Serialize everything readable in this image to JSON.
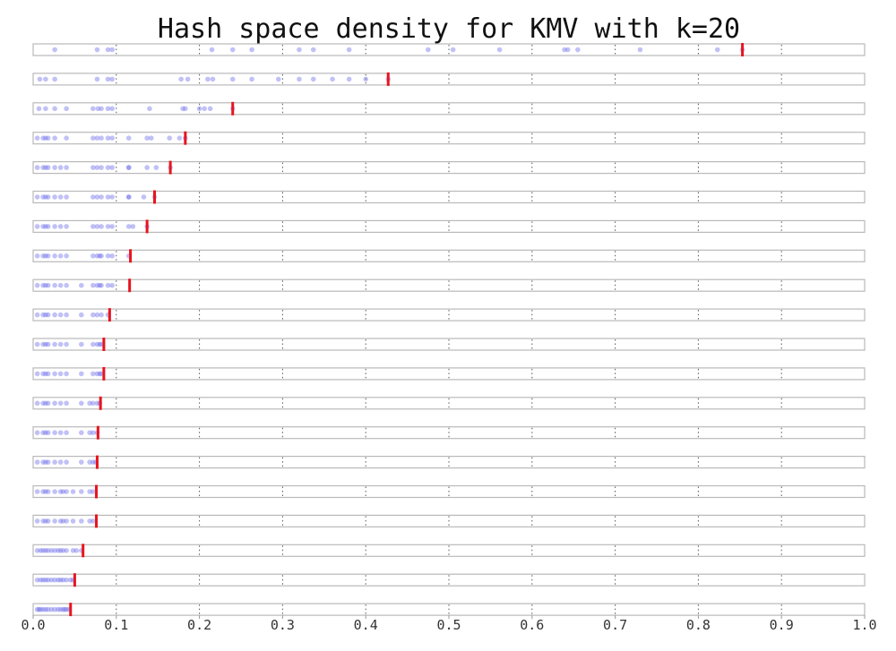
{
  "chart_data": {
    "type": "scatter",
    "title": "Hash space density for KMV with k=20",
    "xlim": [
      0.0,
      1.0
    ],
    "xticks": [
      0.0,
      0.1,
      0.2,
      0.3,
      0.4,
      0.5,
      0.6,
      0.7,
      0.8,
      0.9,
      1.0
    ],
    "xtick_labels": [
      "0.0",
      "0.1",
      "0.2",
      "0.3",
      "0.4",
      "0.5",
      "0.6",
      "0.7",
      "0.8",
      "0.9",
      "1.0"
    ],
    "grid": true,
    "colors": {
      "point": "#6b6bea",
      "marker": "#e8141e",
      "box": "#b9b9b9"
    },
    "rows": [
      {
        "points": [
          0.026,
          0.077,
          0.09,
          0.095,
          0.215,
          0.24,
          0.263,
          0.32,
          0.337,
          0.38,
          0.475,
          0.505,
          0.561,
          0.639,
          0.643,
          0.655,
          0.73,
          0.823,
          0.853
        ],
        "kth": 0.853
      },
      {
        "points": [
          0.008,
          0.015,
          0.026,
          0.077,
          0.09,
          0.095,
          0.178,
          0.186,
          0.21,
          0.216,
          0.24,
          0.263,
          0.295,
          0.32,
          0.337,
          0.36,
          0.38,
          0.4,
          0.427
        ],
        "kth": 0.427
      },
      {
        "points": [
          0.007,
          0.015,
          0.026,
          0.04,
          0.072,
          0.078,
          0.082,
          0.09,
          0.095,
          0.14,
          0.18,
          0.183,
          0.2,
          0.206,
          0.213,
          0.24
        ],
        "kth": 0.24
      },
      {
        "points": [
          0.005,
          0.012,
          0.015,
          0.018,
          0.026,
          0.04,
          0.072,
          0.077,
          0.082,
          0.09,
          0.095,
          0.115,
          0.137,
          0.142,
          0.164,
          0.176,
          0.183
        ],
        "kth": 0.183
      },
      {
        "points": [
          0.005,
          0.012,
          0.015,
          0.018,
          0.026,
          0.033,
          0.04,
          0.072,
          0.077,
          0.082,
          0.09,
          0.095,
          0.115,
          0.115,
          0.137,
          0.148,
          0.165
        ],
        "kth": 0.165
      },
      {
        "points": [
          0.005,
          0.012,
          0.015,
          0.018,
          0.026,
          0.033,
          0.04,
          0.072,
          0.077,
          0.082,
          0.09,
          0.095,
          0.115,
          0.115,
          0.133,
          0.146
        ],
        "kth": 0.146
      },
      {
        "points": [
          0.005,
          0.012,
          0.015,
          0.018,
          0.026,
          0.033,
          0.04,
          0.072,
          0.077,
          0.082,
          0.09,
          0.095,
          0.115,
          0.12,
          0.137
        ],
        "kth": 0.137
      },
      {
        "points": [
          0.005,
          0.012,
          0.015,
          0.018,
          0.026,
          0.033,
          0.04,
          0.072,
          0.077,
          0.08,
          0.082,
          0.09,
          0.095,
          0.115
        ],
        "kth": 0.117
      },
      {
        "points": [
          0.005,
          0.012,
          0.015,
          0.018,
          0.026,
          0.033,
          0.04,
          0.058,
          0.072,
          0.077,
          0.08,
          0.082,
          0.09,
          0.095
        ],
        "kth": 0.116
      },
      {
        "points": [
          0.005,
          0.012,
          0.015,
          0.018,
          0.026,
          0.033,
          0.04,
          0.058,
          0.072,
          0.077,
          0.082,
          0.09
        ],
        "kth": 0.092
      },
      {
        "points": [
          0.005,
          0.012,
          0.015,
          0.018,
          0.026,
          0.033,
          0.04,
          0.058,
          0.072,
          0.077,
          0.08,
          0.082
        ],
        "kth": 0.085
      },
      {
        "points": [
          0.005,
          0.012,
          0.015,
          0.018,
          0.026,
          0.033,
          0.04,
          0.058,
          0.072,
          0.077,
          0.08,
          0.082
        ],
        "kth": 0.085
      },
      {
        "points": [
          0.005,
          0.012,
          0.015,
          0.018,
          0.026,
          0.033,
          0.04,
          0.058,
          0.068,
          0.072,
          0.077,
          0.08
        ],
        "kth": 0.081
      },
      {
        "points": [
          0.005,
          0.012,
          0.015,
          0.018,
          0.026,
          0.033,
          0.04,
          0.058,
          0.068,
          0.072,
          0.077
        ],
        "kth": 0.078
      },
      {
        "points": [
          0.005,
          0.012,
          0.015,
          0.018,
          0.026,
          0.033,
          0.04,
          0.058,
          0.068,
          0.072,
          0.075
        ],
        "kth": 0.077
      },
      {
        "points": [
          0.005,
          0.012,
          0.015,
          0.018,
          0.026,
          0.033,
          0.036,
          0.04,
          0.048,
          0.058,
          0.068,
          0.072
        ],
        "kth": 0.076
      },
      {
        "points": [
          0.005,
          0.012,
          0.015,
          0.018,
          0.026,
          0.033,
          0.036,
          0.04,
          0.048,
          0.058,
          0.068,
          0.072
        ],
        "kth": 0.076
      },
      {
        "points": [
          0.005,
          0.009,
          0.012,
          0.015,
          0.018,
          0.022,
          0.026,
          0.03,
          0.033,
          0.036,
          0.04,
          0.048,
          0.052,
          0.058
        ],
        "kth": 0.06
      },
      {
        "points": [
          0.005,
          0.009,
          0.012,
          0.015,
          0.018,
          0.022,
          0.026,
          0.03,
          0.033,
          0.036,
          0.04,
          0.045,
          0.048
        ],
        "kth": 0.05
      },
      {
        "points": [
          0.005,
          0.007,
          0.009,
          0.012,
          0.015,
          0.018,
          0.022,
          0.026,
          0.03,
          0.033,
          0.036,
          0.038,
          0.04,
          0.043
        ],
        "kth": 0.045
      }
    ]
  }
}
